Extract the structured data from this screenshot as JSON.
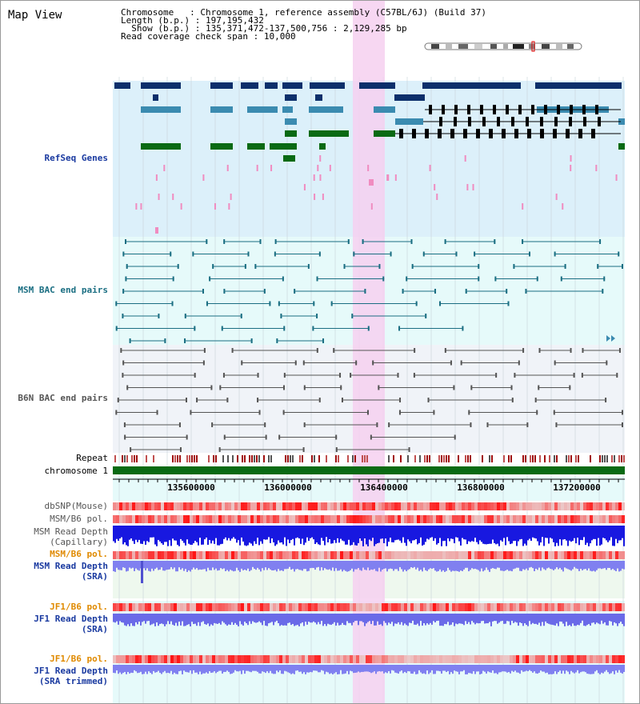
{
  "view": {
    "title": "Map View",
    "chromosome_label": "Chromosome",
    "chromosome_value": "Chromosome 1, reference assembly (C57BL/6J) (Build 37)",
    "length_label": "Length (b.p.)",
    "length_value": "197,195,432",
    "show_label": "Show (b.p.)",
    "show_value": "135,371,472-137,500,756 : 2,129,285 bp",
    "span_label": "Read coverage check span",
    "span_value": "10,000"
  },
  "tracks": {
    "refseq": "RefSeq Genes",
    "msm_bac": "MSM BAC end pairs",
    "b6n_bac": "B6N BAC end pairs",
    "repeat": "Repeat",
    "chromosome": "chromosome 1",
    "dbsnp": "dbSNP(Mouse)",
    "msm_b6_pol_1": "MSM/B6 pol.",
    "msm_read_depth_cap_1": "MSM Read Depth",
    "msm_read_depth_cap_2": "(Capillary)",
    "msm_b6_pol_2": "MSM/B6 pol.",
    "msm_read_depth_sra_1": "MSM Read Depth",
    "msm_read_depth_sra_2": "(SRA)",
    "jf1_b6_pol_1": "JF1/B6 pol.",
    "jf1_read_depth_1": "JF1 Read Depth",
    "jf1_read_depth_2": "(SRA)",
    "jf1_b6_pol_2": "JF1/B6 pol.",
    "jf1_read_depth_trim_1": "JF1 Read Depth",
    "jf1_read_depth_trim_2": "(SRA trimmed)"
  },
  "axis": {
    "ticks": [
      "135600000",
      "136000000",
      "136400000",
      "136800000",
      "137200000"
    ]
  },
  "colors": {
    "refseq_bg": "#dcf0fa",
    "bac_bg": "#e6fafa",
    "b6n_bg": "#f0f3f8",
    "highlight": "#f6d0f0",
    "label_blue": "#1a3aa0",
    "label_teal": "#1a6e82",
    "label_gray": "#555555",
    "label_orange": "#e08a00",
    "chromosome_green": "#0a6a14"
  }
}
